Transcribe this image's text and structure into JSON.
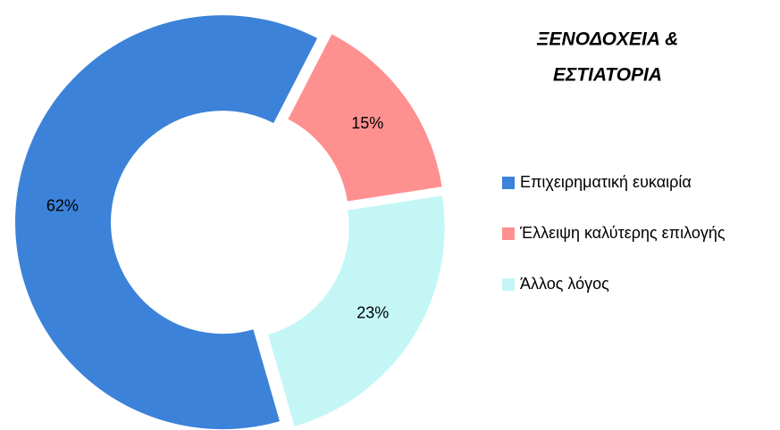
{
  "chart_data": {
    "type": "donut",
    "title": [
      "ΞΕΝΟΔΟΧΕΙΑ &",
      "ΕΣΤΙΑΤΟΡΙΑ"
    ],
    "categories": [
      "Επιχειρηματική ευκαιρία",
      "Έλλειψη καλύτερης επιλογής",
      "Άλλος λόγος"
    ],
    "values": [
      62,
      15,
      23
    ],
    "value_labels": [
      "62%",
      "15%",
      "23%"
    ],
    "colors": [
      "#3b82d8",
      "#ff9090",
      "#c4f6f6"
    ],
    "legend": "right"
  }
}
